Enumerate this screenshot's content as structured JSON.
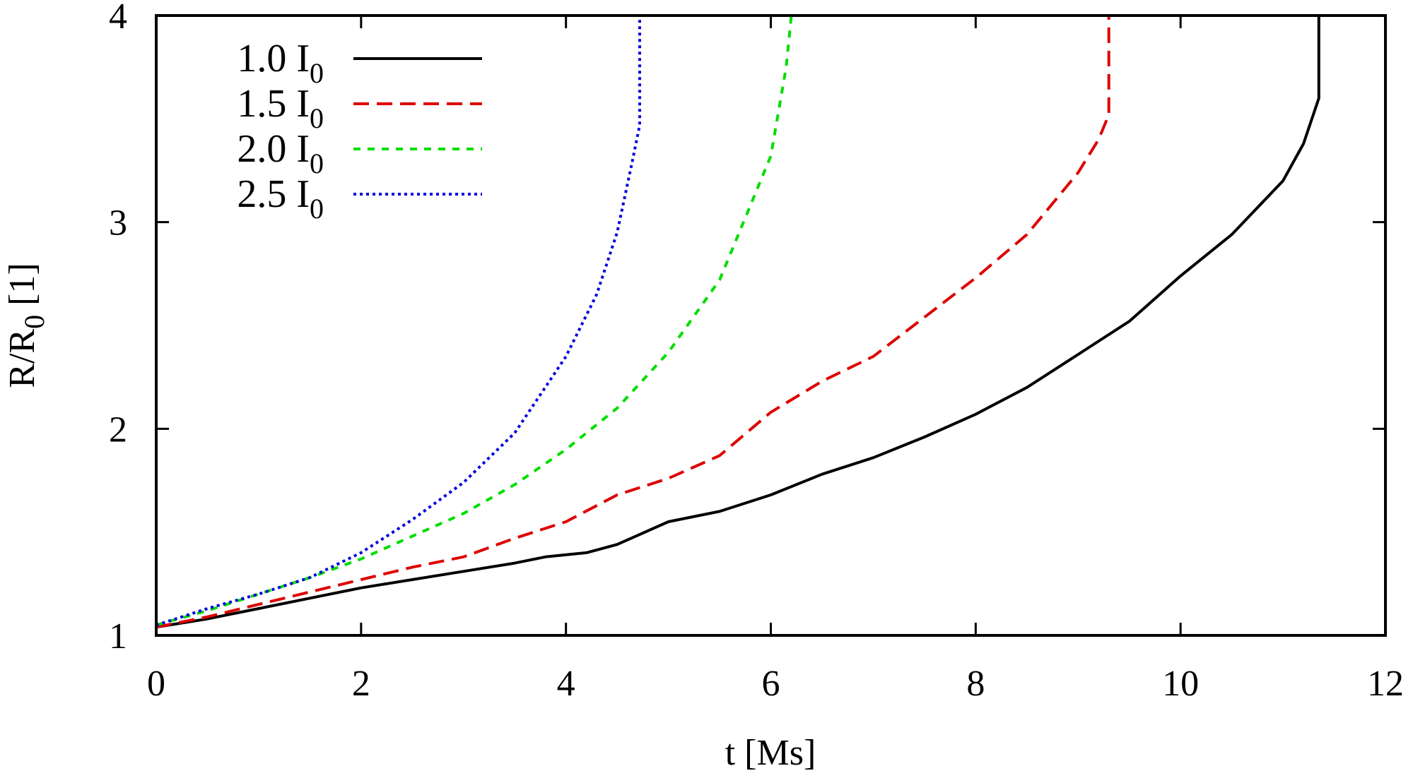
{
  "chart_data": {
    "type": "line",
    "title": "",
    "xlabel": "t [Ms]",
    "ylabel_main": "R/R",
    "ylabel_sub": "0",
    "ylabel_unit": " [1]",
    "xlim": [
      0,
      12
    ],
    "ylim": [
      1,
      4
    ],
    "xticks": [
      0,
      2,
      4,
      6,
      8,
      10,
      12
    ],
    "yticks": [
      1,
      2,
      3,
      4
    ],
    "grid": false,
    "legend_position": "top-left",
    "series": [
      {
        "name": "1.0 I0",
        "label_main": "1.0 I",
        "label_sub": "0",
        "color": "#000000",
        "style": "solid",
        "x": [
          0,
          0.5,
          1,
          1.5,
          2,
          2.5,
          3,
          3.5,
          3.8,
          4.2,
          4.5,
          5,
          5.5,
          6,
          6.5,
          7,
          7.5,
          8,
          8.5,
          9,
          9.5,
          10,
          10.5,
          11,
          11.2,
          11.35,
          11.35
        ],
        "y": [
          1.04,
          1.08,
          1.13,
          1.18,
          1.23,
          1.27,
          1.31,
          1.35,
          1.38,
          1.4,
          1.44,
          1.55,
          1.6,
          1.68,
          1.78,
          1.86,
          1.96,
          2.07,
          2.2,
          2.36,
          2.52,
          2.74,
          2.94,
          3.2,
          3.38,
          3.6,
          4.0
        ]
      },
      {
        "name": "1.5 I0",
        "label_main": "1.5 I",
        "label_sub": "0",
        "color": "#dd0000",
        "style": "dashed",
        "x": [
          0,
          0.5,
          1,
          1.5,
          2,
          2.5,
          3,
          3.5,
          4,
          4.5,
          5,
          5.5,
          6,
          6.5,
          7,
          7.5,
          8,
          8.5,
          9,
          9.2,
          9.3,
          9.3
        ],
        "y": [
          1.04,
          1.09,
          1.15,
          1.21,
          1.27,
          1.33,
          1.38,
          1.47,
          1.55,
          1.68,
          1.76,
          1.87,
          2.08,
          2.23,
          2.35,
          2.54,
          2.73,
          2.94,
          3.24,
          3.4,
          3.52,
          4.0
        ]
      },
      {
        "name": "2.0 I0",
        "label_main": "2.0 I",
        "label_sub": "0",
        "color": "#00dd00",
        "style": "dashed-short",
        "x": [
          0,
          0.5,
          1,
          1.5,
          2,
          2.5,
          3,
          3.5,
          4,
          4.5,
          5,
          5.5,
          6,
          6.15,
          6.2,
          6.2
        ],
        "y": [
          1.05,
          1.12,
          1.2,
          1.28,
          1.37,
          1.48,
          1.59,
          1.73,
          1.9,
          2.1,
          2.37,
          2.72,
          3.32,
          3.75,
          4.0,
          4.0
        ]
      },
      {
        "name": "2.5 I0",
        "label_main": "2.5 I",
        "label_sub": "0",
        "color": "#0000dd",
        "style": "dotted",
        "x": [
          0,
          0.5,
          1,
          1.5,
          2,
          2.5,
          3,
          3.5,
          4,
          4.3,
          4.5,
          4.65,
          4.72,
          4.72
        ],
        "y": [
          1.05,
          1.13,
          1.2,
          1.28,
          1.4,
          1.56,
          1.74,
          1.98,
          2.35,
          2.65,
          2.95,
          3.3,
          3.47,
          4.0
        ]
      }
    ]
  }
}
